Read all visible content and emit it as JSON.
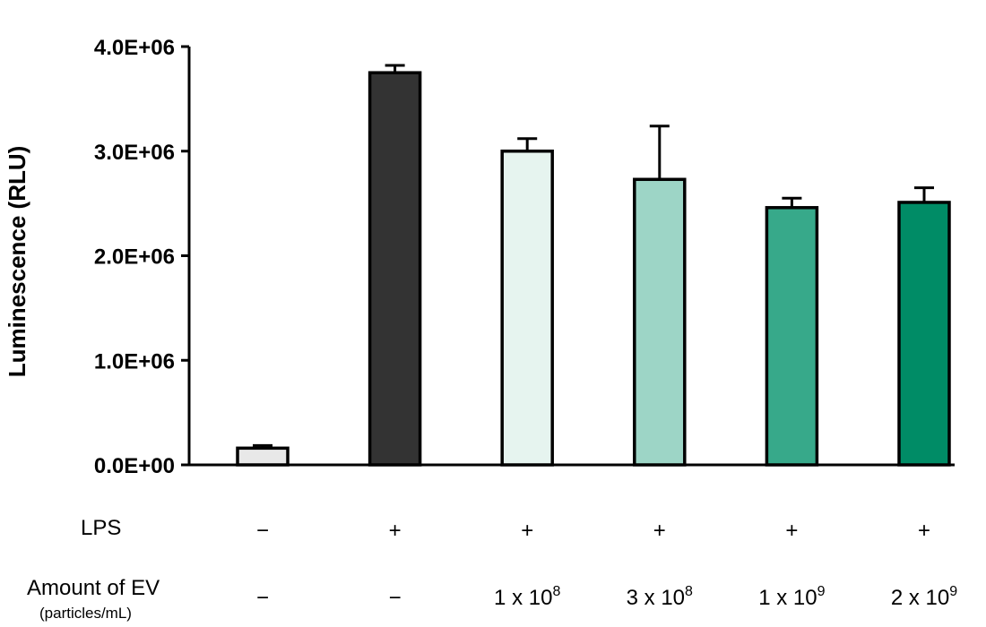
{
  "chart_data": {
    "type": "bar",
    "title": "",
    "ylabel": "Luminescence (RLU)",
    "xlabel": "",
    "ylim": [
      0,
      4000000
    ],
    "yticks": [
      {
        "value": 0,
        "label": "0.0E+00"
      },
      {
        "value": 1000000,
        "label": "1.0E+06"
      },
      {
        "value": 2000000,
        "label": "2.0E+06"
      },
      {
        "value": 3000000,
        "label": "3.0E+06"
      },
      {
        "value": 4000000,
        "label": "4.0E+06"
      }
    ],
    "grid": false,
    "bars": [
      {
        "value": 160000,
        "error": 25000,
        "color": "#e8e8e8"
      },
      {
        "value": 3750000,
        "error": 70000,
        "color": "#333333"
      },
      {
        "value": 3000000,
        "error": 120000,
        "color": "#e6f4ef"
      },
      {
        "value": 2730000,
        "error": 510000,
        "color": "#9dd5c6"
      },
      {
        "value": 2460000,
        "error": 90000,
        "color": "#37a98a"
      },
      {
        "value": 2510000,
        "error": 140000,
        "color": "#008c66"
      }
    ],
    "condition_rows": {
      "lps": {
        "label": "LPS",
        "values": [
          "−",
          "+",
          "+",
          "+",
          "+",
          "+"
        ]
      },
      "ev": {
        "label": "Amount of EV",
        "sublabel": "(particles/mL)",
        "values": [
          {
            "base": "−",
            "exp": ""
          },
          {
            "base": "−",
            "exp": ""
          },
          {
            "base": "1 x 10",
            "exp": "8"
          },
          {
            "base": "3 x 10",
            "exp": "8"
          },
          {
            "base": "1 x 10",
            "exp": "9"
          },
          {
            "base": "2 x 10",
            "exp": "9"
          }
        ]
      }
    }
  }
}
